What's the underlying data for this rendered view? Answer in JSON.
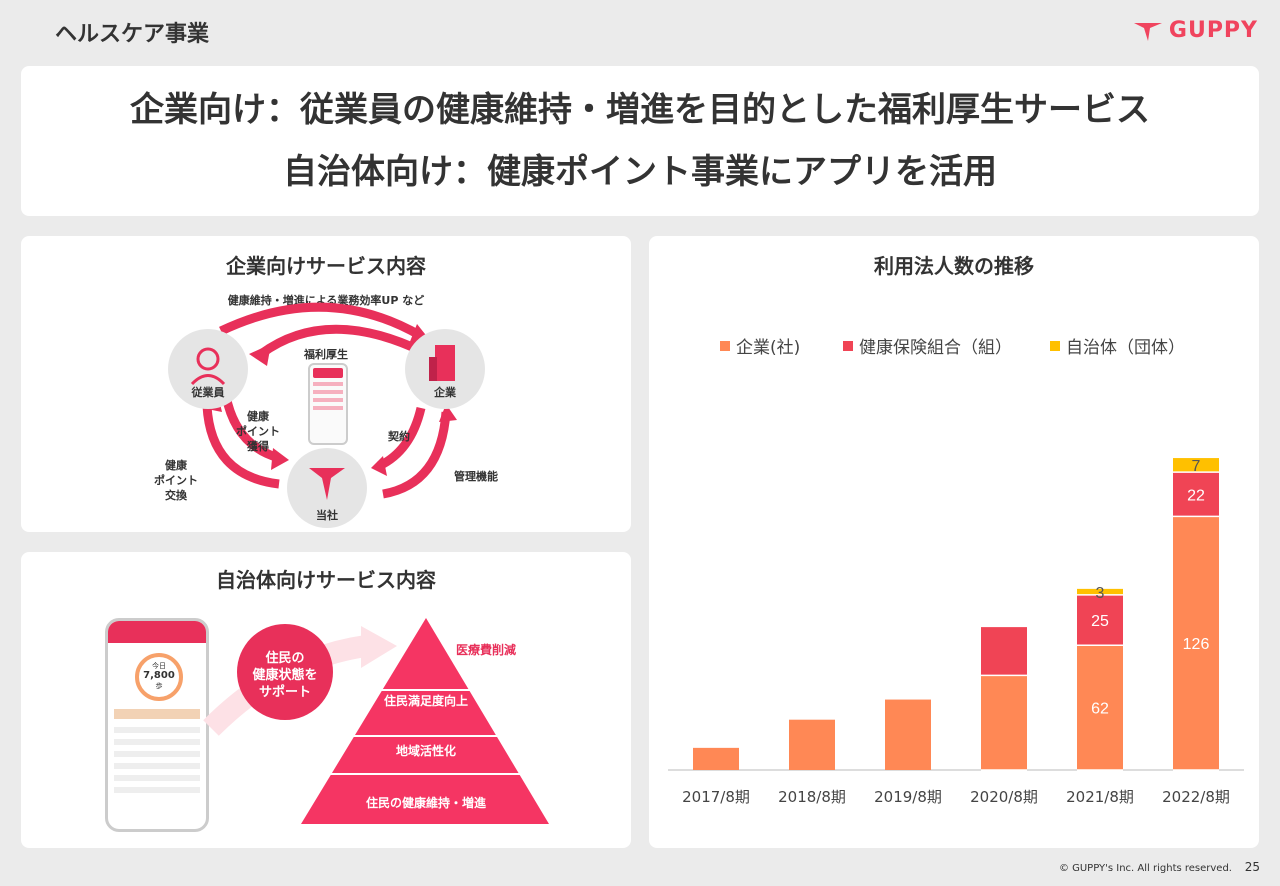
{
  "header": {
    "section_title": "ヘルスケア事業",
    "logo_text": "GUPPY"
  },
  "headline": {
    "line1": "企業向け：従業員の健康維持・増進を目的とした福利厚生サービス",
    "line2": "自治体向け：健康ポイント事業にアプリを活用"
  },
  "corporate": {
    "title": "企業向けサービス内容",
    "top_arrow_label": "健康維持・増進による業務効率UP など",
    "center_label": "福利厚生",
    "employee_label": "従業員",
    "company_label": "企業",
    "us_label": "当社",
    "earn_points_label": "健康\nポイント\n獲得",
    "exchange_points_label": "健康\nポイント\n交換",
    "contract_label": "契約",
    "admin_label": "管理機能"
  },
  "municipal": {
    "title": "自治体向けサービス内容",
    "bubble_text": "住民の\n健康状態を\nサポート",
    "phone_steps_label": "今日",
    "phone_steps_value": "7,800",
    "phone_steps_unit": "歩",
    "pyramid": [
      "医療費削減",
      "住民満足度向上",
      "地域活性化",
      "住民の健康維持・増進"
    ]
  },
  "chart_data": {
    "type": "bar",
    "title": "利用法人数の推移",
    "categories": [
      "2017/8期",
      "2018/8期",
      "2019/8期",
      "2020/8期",
      "2021/8期",
      "2022/8期"
    ],
    "series": [
      {
        "name": "企業(社)",
        "values": [
          11,
          25,
          35,
          47,
          62,
          126
        ],
        "color": "#ff8855"
      },
      {
        "name": "健康保険組合（組）",
        "values": [
          0,
          0,
          0,
          24,
          25,
          22
        ],
        "color": "#f04455"
      },
      {
        "name": "自治体（団体）",
        "values": [
          0,
          0,
          0,
          0,
          3,
          7
        ],
        "color": "#ffc000"
      }
    ],
    "data_labels": [
      {
        "cat": 4,
        "series": 0,
        "text": "62"
      },
      {
        "cat": 4,
        "series": 1,
        "text": "25"
      },
      {
        "cat": 4,
        "series": 2,
        "text": "3"
      },
      {
        "cat": 5,
        "series": 0,
        "text": "126"
      },
      {
        "cat": 5,
        "series": 1,
        "text": "22"
      },
      {
        "cat": 5,
        "series": 2,
        "text": "7"
      }
    ],
    "ylim": [
      0,
      160
    ],
    "legend": "top"
  },
  "footer": {
    "copyright": "© GUPPY's Inc. All rights reserved.",
    "page_number": "25"
  },
  "colors": {
    "accent": "#f0445e",
    "pink": "#e8305a",
    "bar_company": "#ff8855",
    "bar_union": "#f04455",
    "bar_municipal": "#ffc000"
  }
}
